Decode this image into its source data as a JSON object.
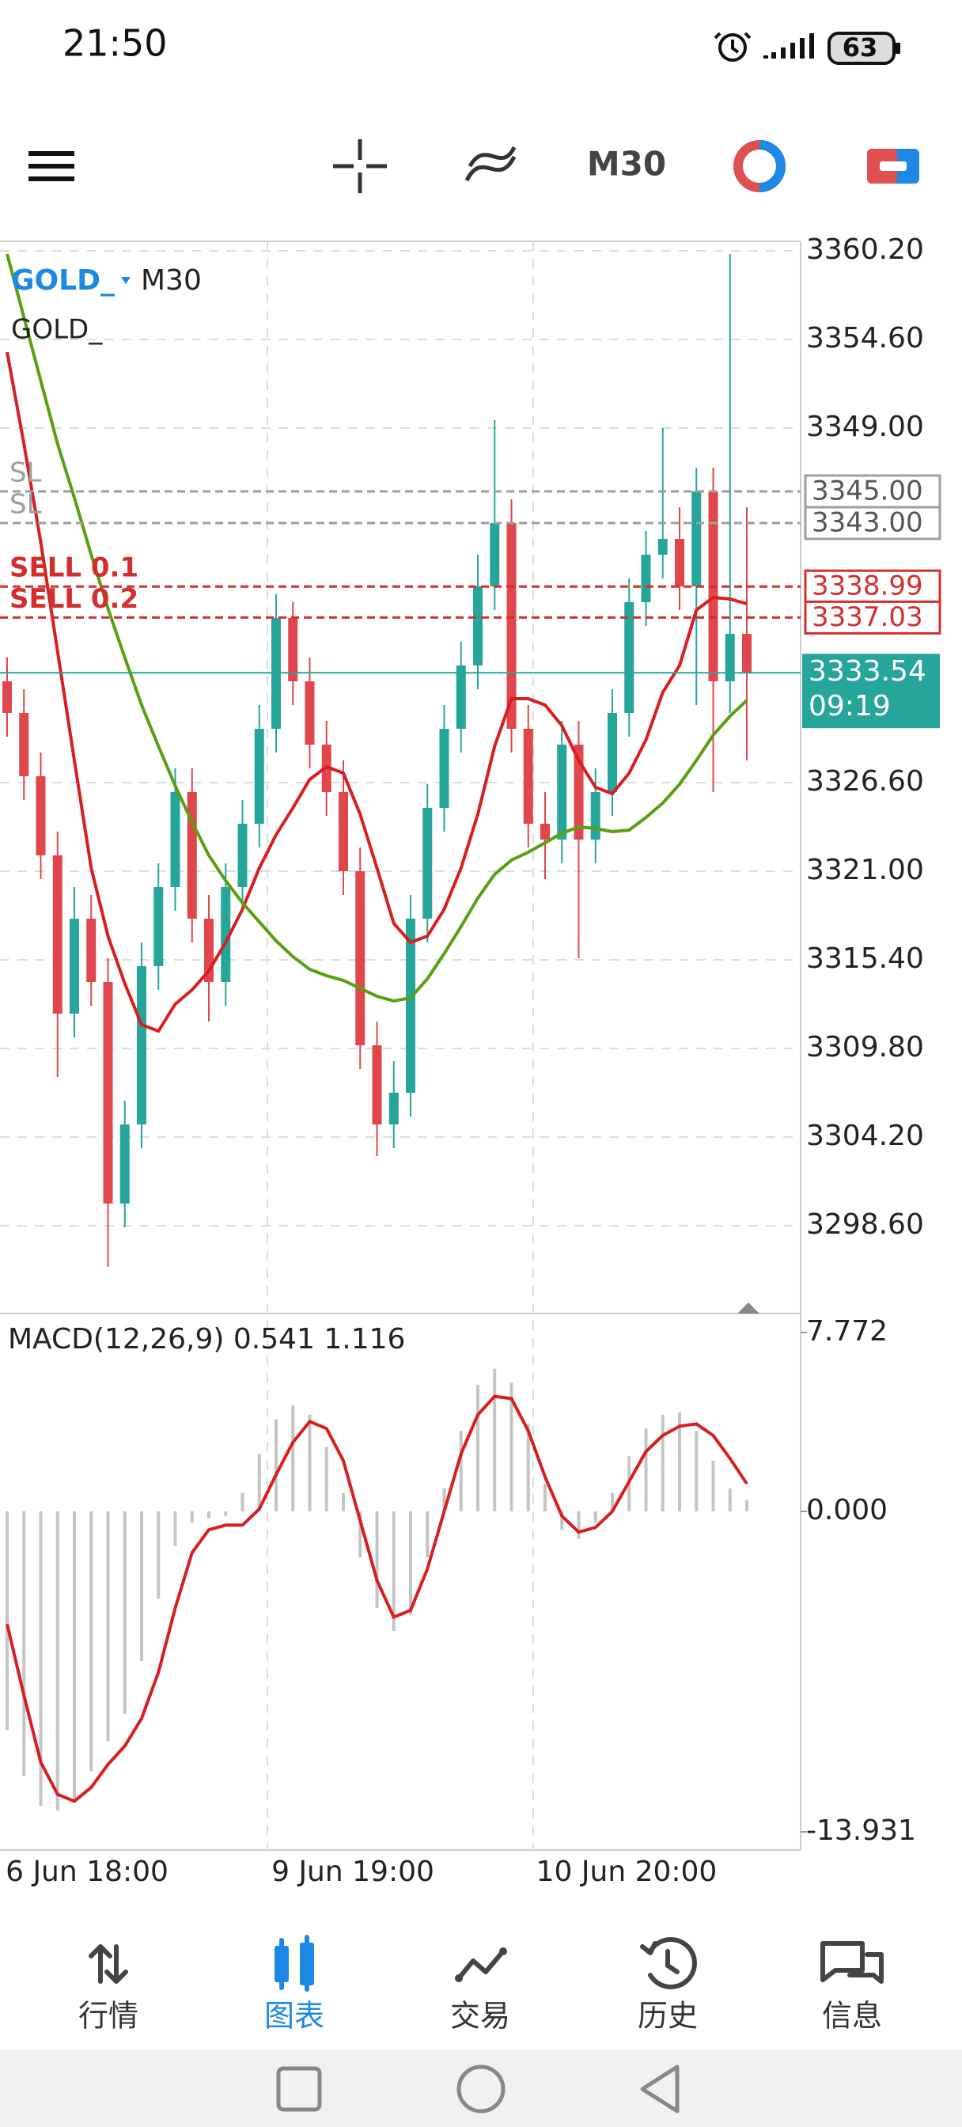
{
  "status_bar": {
    "time": "21:50",
    "battery": "63"
  },
  "toolbar": {
    "timeframe": "M30"
  },
  "chart": {
    "type": "candlestick",
    "symbol": "GOLD_",
    "timeframe": "M30",
    "indicator_label": "GOLD_",
    "ylim": [
      3293.05,
      3360.8
    ],
    "yticks": [
      {
        "value": 3360.2,
        "label": "3360.20"
      },
      {
        "value": 3354.6,
        "label": "3354.60"
      },
      {
        "value": 3349,
        "label": "3349.00"
      },
      {
        "value": 3326.6,
        "label": "3326.60"
      },
      {
        "value": 3321,
        "label": "3321.00"
      },
      {
        "value": 3315.4,
        "label": "3315.40"
      },
      {
        "value": 3309.8,
        "label": "3309.80"
      },
      {
        "value": 3304.2,
        "label": "3304.20"
      },
      {
        "value": 3298.6,
        "label": "3298.60"
      }
    ],
    "grid": true,
    "up_color": "#26a69a",
    "down_color": "#e0474c",
    "candles": {
      "open": [
        3333,
        3331,
        3327,
        3322,
        3312,
        3318,
        3314,
        3300,
        3305,
        3315,
        3320,
        3326,
        3318,
        3314,
        3320,
        3324,
        3330,
        3337,
        3333,
        3329,
        3326,
        3321,
        3310,
        3305,
        3307,
        3318,
        3325,
        3330,
        3334,
        3339,
        3343,
        3330,
        3324,
        3323,
        3329,
        3323,
        3326,
        3331,
        3338,
        3341,
        3342,
        3339,
        3345,
        3333,
        3336
      ],
      "high": [
        3334.5,
        3332.5,
        3328.5,
        3323.5,
        3320,
        3319.5,
        3315.5,
        3306.5,
        3316.5,
        3321.5,
        3327.5,
        3327.5,
        3319.5,
        3321.5,
        3325.5,
        3331.5,
        3338.5,
        3338,
        3334.5,
        3330.5,
        3328,
        3322.5,
        3311.5,
        3309,
        3319.5,
        3326.5,
        3331.5,
        3335.5,
        3341,
        3349.5,
        3344.5,
        3331.5,
        3326,
        3330.5,
        3330.5,
        3327.5,
        3332.5,
        3339.5,
        3342.5,
        3349,
        3344,
        3346.5,
        3346.5,
        3360,
        3344
      ],
      "low": [
        3329.5,
        3325.5,
        3320.5,
        3308,
        3310.5,
        3312.5,
        3296,
        3298.5,
        3303.5,
        3313.5,
        3318.5,
        3316.5,
        3311.5,
        3312.5,
        3318.5,
        3322.5,
        3328.5,
        3331.5,
        3327.5,
        3324.5,
        3319.5,
        3308.5,
        3303,
        3303.5,
        3305.5,
        3316.5,
        3323.5,
        3328.5,
        3332.5,
        3337.5,
        3328.5,
        3322.5,
        3320.5,
        3321.5,
        3315.5,
        3321.5,
        3324.5,
        3329.5,
        3336.5,
        3339.5,
        3337.5,
        3331.5,
        3326,
        3331,
        3328
      ],
      "close": [
        3331,
        3327,
        3322,
        3312,
        3318,
        3314,
        3300,
        3305,
        3315,
        3320,
        3326,
        3318,
        3314,
        3320,
        3324,
        3330,
        3337,
        3333,
        3329,
        3326,
        3321,
        3310,
        3305,
        3307,
        3318,
        3325,
        3330,
        3334,
        3339,
        3343,
        3330,
        3324,
        3323,
        3329,
        3323,
        3326,
        3331,
        3338,
        3341,
        3342,
        3339,
        3345,
        3333,
        3336,
        3333.54
      ]
    },
    "moving_averages": [
      {
        "color": "#d81e1e",
        "values": [
          3353.8,
          3348,
          3341.8,
          3334.9,
          3328,
          3321.2,
          3316.9,
          3313.9,
          3311.3,
          3310.9,
          3312.6,
          3313.5,
          3314.7,
          3316.5,
          3318.6,
          3321.2,
          3323.3,
          3325,
          3326.8,
          3327.6,
          3327.2,
          3324.6,
          3321.2,
          3317.7,
          3316.5,
          3316.9,
          3318.6,
          3321.2,
          3324.6,
          3328.9,
          3331.9,
          3331.9,
          3331.5,
          3330.2,
          3328,
          3326.3,
          3325.9,
          3327.2,
          3329.3,
          3332.3,
          3334,
          3337.5,
          3338.3,
          3338.2,
          3337.9
        ]
      },
      {
        "color": "#5a9e12",
        "values": [
          3360,
          3356,
          3352,
          3348,
          3344.6,
          3341,
          3337.6,
          3334.5,
          3331.5,
          3328.9,
          3326.4,
          3324.1,
          3322,
          3320.4,
          3319,
          3317.8,
          3316.6,
          3315.6,
          3314.8,
          3314.4,
          3314.1,
          3313.6,
          3313.1,
          3312.8,
          3313,
          3314.2,
          3315.8,
          3317.5,
          3319.3,
          3320.8,
          3321.7,
          3322.2,
          3322.8,
          3323.4,
          3323.8,
          3323.7,
          3323.5,
          3323.6,
          3324.4,
          3325.3,
          3326.5,
          3328,
          3329.6,
          3330.8,
          3331.8
        ]
      }
    ],
    "price_lines": [
      {
        "label": "SL",
        "value": 3345,
        "value_label": "3345.00",
        "color": "#9e9e9e"
      },
      {
        "label": "SL",
        "value": 3343,
        "value_label": "3343.00",
        "color": "#9e9e9e"
      },
      {
        "label": "SELL 0.1",
        "value": 3338.99,
        "value_label": "3338.99",
        "color": "#d32f2f"
      },
      {
        "label": "SELL 0.2",
        "value": 3337.03,
        "value_label": "3337.03",
        "color": "#d32f2f"
      }
    ],
    "current_price": {
      "value": 3333.54,
      "value_label": "3333.54",
      "countdown": "09:19",
      "color": "#26a69a"
    },
    "time_labels": [
      "6 Jun 18:00",
      "9 Jun 19:00",
      "10 Jun 20:00"
    ]
  },
  "macd": {
    "label": "MACD(12,26,9) 0.541 1.116",
    "ylim": [
      -13.931,
      7.772
    ],
    "yticks": [
      {
        "value": 7.772,
        "label": "7.772"
      },
      {
        "value": 0,
        "label": "0.000"
      },
      {
        "value": -13.931,
        "label": "-13.931"
      }
    ],
    "histogram_color": "#c4c4c4",
    "signal_color": "#d81e1e",
    "histogram": [
      -9.5,
      -11.5,
      -12.8,
      -13,
      -12.5,
      -11.3,
      -10,
      -8.8,
      -6.5,
      -3.8,
      -1.5,
      -0.5,
      -0.3,
      -0.2,
      0.8,
      2.5,
      4,
      4.6,
      4.2,
      2.8,
      0.8,
      -2,
      -4.2,
      -5.2,
      -4.5,
      -2,
      1,
      3.5,
      5.5,
      6.2,
      5.6,
      3.8,
      1.2,
      -0.8,
      -1.2,
      -0.5,
      0.8,
      2.4,
      3.6,
      4.2,
      4.3,
      3.5,
      2.2,
      1,
      0.5
    ],
    "signal": [
      -4.9,
      -8,
      -10.9,
      -12.3,
      -12.6,
      -12,
      -11,
      -10.2,
      -9,
      -7,
      -4.2,
      -1.8,
      -0.8,
      -0.6,
      -0.6,
      0.1,
      1.6,
      3,
      3.9,
      3.6,
      2.2,
      -0.4,
      -3,
      -4.6,
      -4.3,
      -2.5,
      0,
      2.5,
      4.2,
      5,
      4.9,
      3.5,
      1.5,
      -0.2,
      -0.9,
      -0.7,
      0,
      1.3,
      2.6,
      3.3,
      3.7,
      3.8,
      3.3,
      2.3,
      1.2
    ]
  },
  "nav": {
    "items": [
      "行情",
      "图表",
      "交易",
      "历史",
      "信息"
    ],
    "active": 1,
    "active_color": "#1e88e5"
  }
}
